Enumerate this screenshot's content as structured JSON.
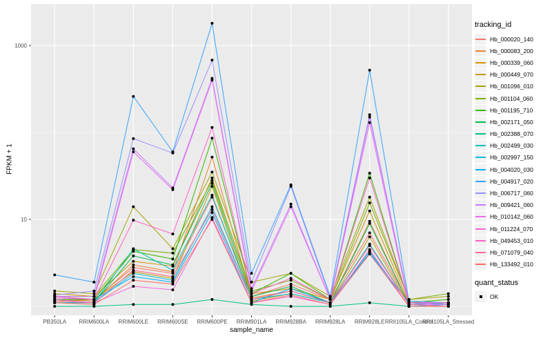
{
  "chart_data": {
    "type": "line",
    "title": "",
    "xlabel": "sample_name",
    "ylabel": "FPKM + 1",
    "x_categories": [
      "PB350LA",
      "RRIM600LA",
      "RRIM600LE",
      "RRIM600SE",
      "RRIM600PE",
      "RRIM901LA",
      "RRIM928BA",
      "RRIM928LA",
      "RRIM928LE",
      "RRII105LA_Control",
      "RRII105LA_Stressed"
    ],
    "y_axis": {
      "scale": "log10",
      "tick_values": [
        10,
        1000
      ],
      "tick_labels": [
        "10",
        "1000"
      ],
      "minor_gridline_values": [
        1,
        100
      ],
      "ylim": [
        0.8,
        3000
      ]
    },
    "grid": "on",
    "legend_position": "right",
    "panel_bg": "#EBEBEB",
    "gridline_color": "#FFFFFF",
    "point_color": "#000000",
    "legend": {
      "tracking_title": "tracking_id",
      "quant_title": "quant_status",
      "quant_items": [
        {
          "label": "OK",
          "marker": "point"
        }
      ]
    },
    "series": [
      {
        "name": "Hb_000020_140",
        "color": "#F8766D",
        "values": [
          1.3,
          1.2,
          2.8,
          2.4,
          18.0,
          1.3,
          1.8,
          1.2,
          7.0,
          1.1,
          1.1
        ]
      },
      {
        "name": "Hb_000083_200",
        "color": "#EA8331",
        "values": [
          1.2,
          1.15,
          3.0,
          2.5,
          52.0,
          1.25,
          1.5,
          1.1,
          9.5,
          1.05,
          1.1
        ]
      },
      {
        "name": "Hb_000339_060",
        "color": "#D89000",
        "values": [
          1.4,
          1.3,
          3.3,
          2.9,
          30.0,
          1.4,
          1.6,
          1.2,
          12.5,
          1.1,
          1.2
        ]
      },
      {
        "name": "Hb_000449_070",
        "color": "#C09B00",
        "values": [
          1.15,
          1.2,
          2.5,
          2.1,
          24.0,
          1.15,
          1.4,
          1.1,
          6.3,
          1.05,
          1.1
        ]
      },
      {
        "name": "Hb_001096_010",
        "color": "#A3A500",
        "values": [
          1.5,
          1.4,
          14.0,
          4.6,
          35.0,
          1.9,
          2.4,
          1.3,
          18.0,
          1.2,
          1.3
        ]
      },
      {
        "name": "Hb_001104_060",
        "color": "#7CAE00",
        "values": [
          1.3,
          1.3,
          4.5,
          4.1,
          28.0,
          1.5,
          2.0,
          1.2,
          15.5,
          1.2,
          1.4
        ]
      },
      {
        "name": "Hb_001195_710",
        "color": "#39B600",
        "values": [
          1.2,
          1.2,
          4.3,
          3.5,
          86.0,
          1.4,
          2.4,
          1.2,
          34.0,
          1.1,
          1.2
        ]
      },
      {
        "name": "Hb_002171_050",
        "color": "#00BB4E",
        "values": [
          1.1,
          1.1,
          3.8,
          3.0,
          26.0,
          1.3,
          1.7,
          1.1,
          9.0,
          1.05,
          1.1
        ]
      },
      {
        "name": "Hb_002388_070",
        "color": "#00C087",
        "values": [
          1.0,
          1.0,
          1.05,
          1.05,
          1.2,
          1.05,
          1.0,
          1.0,
          1.1,
          1.0,
          1.05
        ]
      },
      {
        "name": "Hb_002499_030",
        "color": "#00C0B8",
        "values": [
          1.2,
          1.1,
          4.6,
          2.6,
          19.0,
          1.2,
          1.5,
          1.1,
          5.2,
          1.05,
          1.1
        ]
      },
      {
        "name": "Hb_002997_150",
        "color": "#00BCD8",
        "values": [
          1.1,
          1.1,
          2.4,
          2.0,
          14.0,
          1.2,
          1.4,
          1.1,
          4.3,
          1.0,
          1.05
        ]
      },
      {
        "name": "Hb_004020_030",
        "color": "#00B0F6",
        "values": [
          1.3,
          1.2,
          2.2,
          1.9,
          12.0,
          1.1,
          1.6,
          1.1,
          4.1,
          1.1,
          1.05
        ]
      },
      {
        "name": "Hb_004917_020",
        "color": "#35A2FF",
        "values": [
          2.3,
          1.9,
          260,
          60.0,
          1800,
          2.4,
          25.0,
          1.3,
          520,
          1.15,
          1.1
        ]
      },
      {
        "name": "Hb_006717_060",
        "color": "#9590FF",
        "values": [
          1.35,
          1.5,
          85.0,
          58.0,
          680,
          1.9,
          24.0,
          1.25,
          160,
          1.1,
          1.1
        ]
      },
      {
        "name": "Hb_009421_060",
        "color": "#C77CFF",
        "values": [
          1.3,
          1.3,
          65.0,
          23.0,
          420,
          1.6,
          15.0,
          1.2,
          150,
          1.1,
          1.05
        ]
      },
      {
        "name": "Hb_010142_060",
        "color": "#E76BF3",
        "values": [
          1.25,
          1.2,
          60.0,
          22.0,
          400,
          1.5,
          14.0,
          1.2,
          130,
          1.05,
          1.05
        ]
      },
      {
        "name": "Hb_011224_070",
        "color": "#FA62DB",
        "values": [
          1.2,
          1.1,
          1.7,
          1.55,
          10.5,
          1.1,
          1.3,
          1.05,
          4.5,
          1.0,
          1.0
        ]
      },
      {
        "name": "Hb_049453_010",
        "color": "#FF61C3",
        "values": [
          1.3,
          1.2,
          9.8,
          6.8,
          114,
          1.4,
          2.1,
          1.2,
          30.0,
          1.1,
          1.1
        ]
      },
      {
        "name": "Hb_071079_040",
        "color": "#FF6A98",
        "values": [
          1.15,
          1.1,
          2.6,
          2.2,
          13.0,
          1.2,
          1.5,
          1.1,
          5.0,
          1.05,
          1.0
        ]
      },
      {
        "name": "Hb_133492_010",
        "color": "#FF6C67",
        "values": [
          1.1,
          1.05,
          2.0,
          1.8,
          10.0,
          1.1,
          1.35,
          1.05,
          4.0,
          1.0,
          1.0
        ]
      }
    ]
  }
}
